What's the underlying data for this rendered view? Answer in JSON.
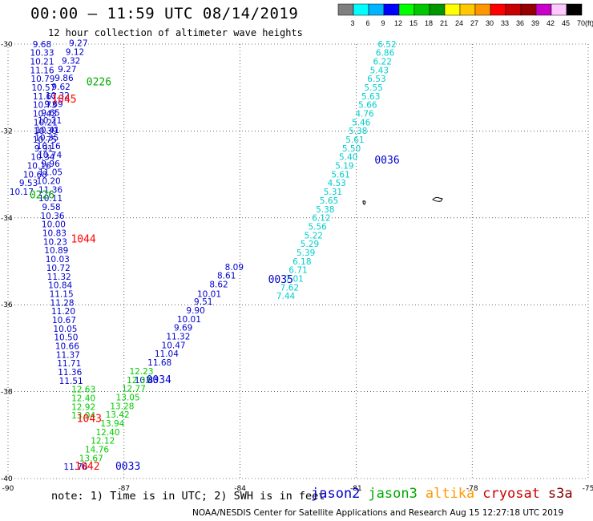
{
  "header": {
    "title": "00:00 – 11:59 UTC 08/14/2019",
    "subtitle": "12 hour collection of altimeter wave heights"
  },
  "legend": {
    "labels": [
      "3",
      "6",
      "9",
      "12",
      "15",
      "18",
      "21",
      "24",
      "27",
      "30",
      "33",
      "36",
      "39",
      "42",
      "45",
      "70"
    ],
    "unit": "(ft)",
    "colors": [
      "#7f7f7f",
      "#00ffff",
      "#00b4ff",
      "#0000ff",
      "#00ff00",
      "#00c800",
      "#009600",
      "#ffff00",
      "#ffc800",
      "#ff9600",
      "#ff0000",
      "#c80000",
      "#960000",
      "#c800c8",
      "#ffc8ff",
      "#000000"
    ]
  },
  "chart_data": {
    "type": "scatter",
    "xlim": [
      -90,
      -75
    ],
    "ylim": [
      -40,
      -30
    ],
    "xticks": [
      "-90",
      "-87",
      "-84",
      "-81",
      "-78",
      "-75"
    ],
    "yticks": [
      "-30",
      "-32",
      "-34",
      "-36",
      "-38",
      "-40"
    ],
    "grid": true,
    "series": [
      {
        "name": "jason2",
        "color": "#0000cc",
        "points": [
          {
            "lon": -89.12,
            "lat": -30.07,
            "v": "9.68"
          },
          {
            "lon": -89.12,
            "lat": -30.27,
            "v": "10.33"
          },
          {
            "lon": -89.12,
            "lat": -30.47,
            "v": "10.21"
          },
          {
            "lon": -89.12,
            "lat": -30.67,
            "v": "11.16"
          },
          {
            "lon": -89.1,
            "lat": -30.87,
            "v": "10.79"
          },
          {
            "lon": -89.08,
            "lat": -31.07,
            "v": "10.57"
          },
          {
            "lon": -89.05,
            "lat": -31.27,
            "v": "11.67"
          },
          {
            "lon": -89.05,
            "lat": -31.47,
            "v": "10.73"
          },
          {
            "lon": -89.05,
            "lat": -31.67,
            "v": "10.43"
          },
          {
            "lon": -89.03,
            "lat": -31.87,
            "v": "10.21"
          },
          {
            "lon": -89.03,
            "lat": -32.07,
            "v": "10.39"
          },
          {
            "lon": -89.05,
            "lat": -32.27,
            "v": "10.75"
          },
          {
            "lon": -89.08,
            "lat": -32.47,
            "v": "9.91"
          },
          {
            "lon": -89.1,
            "lat": -32.67,
            "v": "10.34"
          },
          {
            "lon": -89.2,
            "lat": -32.87,
            "v": "10.16"
          },
          {
            "lon": -89.3,
            "lat": -33.07,
            "v": "10.68"
          },
          {
            "lon": -89.47,
            "lat": -33.27,
            "v": "9.53"
          },
          {
            "lon": -89.65,
            "lat": -33.47,
            "v": "10.17"
          },
          {
            "lon": -88.18,
            "lat": -30.05,
            "v": "9.27"
          },
          {
            "lon": -88.27,
            "lat": -30.25,
            "v": "9.12"
          },
          {
            "lon": -88.37,
            "lat": -30.45,
            "v": "9.32"
          },
          {
            "lon": -88.47,
            "lat": -30.65,
            "v": "9.27"
          },
          {
            "lon": -88.55,
            "lat": -30.85,
            "v": "9.86"
          },
          {
            "lon": -88.63,
            "lat": -31.05,
            "v": "9.62"
          },
          {
            "lon": -88.72,
            "lat": -31.25,
            "v": "10.32"
          },
          {
            "lon": -88.82,
            "lat": -31.45,
            "v": "9.69"
          },
          {
            "lon": -88.9,
            "lat": -31.65,
            "v": "9.65"
          },
          {
            "lon": -88.92,
            "lat": -31.83,
            "v": "10.21"
          },
          {
            "lon": -88.98,
            "lat": -32.05,
            "v": "10.41"
          },
          {
            "lon": -89.0,
            "lat": -32.22,
            "v": "10.35"
          },
          {
            "lon": -88.95,
            "lat": -32.42,
            "v": "10.16"
          },
          {
            "lon": -88.92,
            "lat": -32.62,
            "v": "10.74"
          },
          {
            "lon": -88.9,
            "lat": -32.82,
            "v": "9.96"
          },
          {
            "lon": -88.9,
            "lat": -33.02,
            "v": "11.05"
          },
          {
            "lon": -88.95,
            "lat": -33.22,
            "v": "10.20"
          },
          {
            "lon": -88.9,
            "lat": -33.42,
            "v": "11.36"
          },
          {
            "lon": -88.9,
            "lat": -33.62,
            "v": "10.11"
          },
          {
            "lon": -88.88,
            "lat": -33.82,
            "v": "9.58"
          },
          {
            "lon": -88.85,
            "lat": -34.02,
            "v": "10.36"
          },
          {
            "lon": -88.82,
            "lat": -34.22,
            "v": "10.00"
          },
          {
            "lon": -88.8,
            "lat": -34.42,
            "v": "10.83"
          },
          {
            "lon": -88.78,
            "lat": -34.62,
            "v": "10.23"
          },
          {
            "lon": -88.75,
            "lat": -34.82,
            "v": "10.89"
          },
          {
            "lon": -88.72,
            "lat": -35.02,
            "v": "10.03"
          },
          {
            "lon": -88.7,
            "lat": -35.22,
            "v": "10.72"
          },
          {
            "lon": -88.68,
            "lat": -35.42,
            "v": "11.32"
          },
          {
            "lon": -88.65,
            "lat": -35.62,
            "v": "10.84"
          },
          {
            "lon": -88.62,
            "lat": -35.82,
            "v": "11.15"
          },
          {
            "lon": -88.6,
            "lat": -36.02,
            "v": "11.28"
          },
          {
            "lon": -88.57,
            "lat": -36.22,
            "v": "11.20"
          },
          {
            "lon": -88.55,
            "lat": -36.42,
            "v": "10.67"
          },
          {
            "lon": -88.52,
            "lat": -36.62,
            "v": "10.05"
          },
          {
            "lon": -88.5,
            "lat": -36.82,
            "v": "10.50"
          },
          {
            "lon": -88.47,
            "lat": -37.02,
            "v": "10.66"
          },
          {
            "lon": -88.45,
            "lat": -37.22,
            "v": "11.37"
          },
          {
            "lon": -88.42,
            "lat": -37.42,
            "v": "11.71"
          },
          {
            "lon": -88.4,
            "lat": -37.62,
            "v": "11.36"
          },
          {
            "lon": -88.37,
            "lat": -37.82,
            "v": "11.51"
          },
          {
            "lon": -88.25,
            "lat": -39.8,
            "v": "11.76"
          },
          {
            "lon": -86.42,
            "lat": -37.8,
            "v": "10.83"
          },
          {
            "lon": -86.08,
            "lat": -37.4,
            "v": "11.68"
          },
          {
            "lon": -85.9,
            "lat": -37.2,
            "v": "11.04"
          },
          {
            "lon": -85.72,
            "lat": -37.0,
            "v": "10.47"
          },
          {
            "lon": -85.6,
            "lat": -36.8,
            "v": "11.32"
          },
          {
            "lon": -85.47,
            "lat": -36.6,
            "v": "9.69"
          },
          {
            "lon": -85.32,
            "lat": -36.4,
            "v": "10.01"
          },
          {
            "lon": -85.15,
            "lat": -36.2,
            "v": "9.90"
          },
          {
            "lon": -84.95,
            "lat": -36.0,
            "v": "9.51"
          },
          {
            "lon": -84.8,
            "lat": -35.82,
            "v": "10.01"
          },
          {
            "lon": -84.55,
            "lat": -35.6,
            "v": "8.62"
          },
          {
            "lon": -84.35,
            "lat": -35.4,
            "v": "8.61"
          },
          {
            "lon": -84.15,
            "lat": -35.2,
            "v": "8.09"
          }
        ]
      },
      {
        "name": "jason3",
        "color": "#00cc00",
        "points": [
          {
            "lon": -88.05,
            "lat": -38.02,
            "v": "12.63"
          },
          {
            "lon": -88.05,
            "lat": -38.22,
            "v": "12.40"
          },
          {
            "lon": -88.05,
            "lat": -38.42,
            "v": "12.92"
          },
          {
            "lon": -88.05,
            "lat": -38.62,
            "v": "13.04"
          },
          {
            "lon": -86.55,
            "lat": -37.6,
            "v": "12.23"
          },
          {
            "lon": -86.62,
            "lat": -37.8,
            "v": "12.37"
          },
          {
            "lon": -86.75,
            "lat": -38.0,
            "v": "12.77"
          },
          {
            "lon": -86.9,
            "lat": -38.2,
            "v": "13.05"
          },
          {
            "lon": -87.05,
            "lat": -38.4,
            "v": "13.28"
          },
          {
            "lon": -87.17,
            "lat": -38.6,
            "v": "13.42"
          },
          {
            "lon": -87.3,
            "lat": -38.8,
            "v": "13.94"
          },
          {
            "lon": -87.42,
            "lat": -39.0,
            "v": "12.40"
          },
          {
            "lon": -87.55,
            "lat": -39.2,
            "v": "12.12"
          },
          {
            "lon": -87.7,
            "lat": -39.4,
            "v": "14.76"
          },
          {
            "lon": -87.85,
            "lat": -39.6,
            "v": "13.67"
          }
        ]
      },
      {
        "name": "altika",
        "color": "#00cccc",
        "points": [
          {
            "lon": -80.2,
            "lat": -30.07,
            "v": "6.52"
          },
          {
            "lon": -80.25,
            "lat": -30.27,
            "v": "6.86"
          },
          {
            "lon": -80.32,
            "lat": -30.47,
            "v": "6.22"
          },
          {
            "lon": -80.4,
            "lat": -30.67,
            "v": "5.43"
          },
          {
            "lon": -80.47,
            "lat": -30.87,
            "v": "6.53"
          },
          {
            "lon": -80.55,
            "lat": -31.07,
            "v": "5.55"
          },
          {
            "lon": -80.62,
            "lat": -31.27,
            "v": "5.63"
          },
          {
            "lon": -80.7,
            "lat": -31.47,
            "v": "5.66"
          },
          {
            "lon": -80.78,
            "lat": -31.67,
            "v": "4.76"
          },
          {
            "lon": -80.87,
            "lat": -31.87,
            "v": "5.46"
          },
          {
            "lon": -80.95,
            "lat": -32.07,
            "v": "5.38"
          },
          {
            "lon": -81.03,
            "lat": -32.27,
            "v": "5.61"
          },
          {
            "lon": -81.12,
            "lat": -32.47,
            "v": "5.50"
          },
          {
            "lon": -81.2,
            "lat": -32.67,
            "v": "5.40"
          },
          {
            "lon": -81.3,
            "lat": -32.87,
            "v": "5.19"
          },
          {
            "lon": -81.4,
            "lat": -33.07,
            "v": "5.61"
          },
          {
            "lon": -81.5,
            "lat": -33.27,
            "v": "4.53"
          },
          {
            "lon": -81.6,
            "lat": -33.47,
            "v": "5.31"
          },
          {
            "lon": -81.7,
            "lat": -33.67,
            "v": "5.65"
          },
          {
            "lon": -81.8,
            "lat": -33.87,
            "v": "5.38"
          },
          {
            "lon": -81.9,
            "lat": -34.07,
            "v": "6.12"
          },
          {
            "lon": -82.0,
            "lat": -34.27,
            "v": "5.56"
          },
          {
            "lon": -82.1,
            "lat": -34.47,
            "v": "5.22"
          },
          {
            "lon": -82.2,
            "lat": -34.67,
            "v": "5.29"
          },
          {
            "lon": -82.3,
            "lat": -34.87,
            "v": "5.39"
          },
          {
            "lon": -82.4,
            "lat": -35.07,
            "v": "6.18"
          },
          {
            "lon": -82.5,
            "lat": -35.27,
            "v": "6.71"
          },
          {
            "lon": -82.6,
            "lat": -35.47,
            "v": "7.01"
          },
          {
            "lon": -82.72,
            "lat": -35.67,
            "v": "7.62"
          },
          {
            "lon": -82.82,
            "lat": -35.87,
            "v": "7.44"
          }
        ]
      }
    ],
    "passes": [
      {
        "label": "0226",
        "lon": -87.65,
        "lat": -30.95,
        "color": "#00aa00"
      },
      {
        "label": "1045",
        "lon": -88.55,
        "lat": -31.35,
        "color": "#ff0000"
      },
      {
        "label": "0036",
        "lon": -80.2,
        "lat": -32.75,
        "color": "#0000cc"
      },
      {
        "label": "0226",
        "lon": -89.12,
        "lat": -33.55,
        "color": "#00aa00"
      },
      {
        "label": "1044",
        "lon": -88.05,
        "lat": -34.57,
        "color": "#ff0000"
      },
      {
        "label": "0035",
        "lon": -82.95,
        "lat": -35.5,
        "color": "#0000cc"
      },
      {
        "label": "0034",
        "lon": -86.1,
        "lat": -37.8,
        "color": "#0000cc"
      },
      {
        "label": "1043",
        "lon": -87.9,
        "lat": -38.7,
        "color": "#ff0000"
      },
      {
        "label": "1042",
        "lon": -87.95,
        "lat": -39.8,
        "color": "#ff0000"
      },
      {
        "label": "0033",
        "lon": -86.9,
        "lat": -39.8,
        "color": "#0000cc"
      }
    ]
  },
  "note": "note:  1) Time is in UTC;  2) SWH is in feet",
  "satellites": [
    {
      "name": "jason2",
      "color": "#0000cc"
    },
    {
      "name": "jason3",
      "color": "#00aa00"
    },
    {
      "name": "altika",
      "color": "#ff9900"
    },
    {
      "name": "cryosat",
      "color": "#cc0000"
    },
    {
      "name": "s3a",
      "color": "#880000"
    }
  ],
  "footer": "NOAA/NESDIS Center for Satellite Applications and Research    Aug 15 12:27:18 UTC 2019"
}
